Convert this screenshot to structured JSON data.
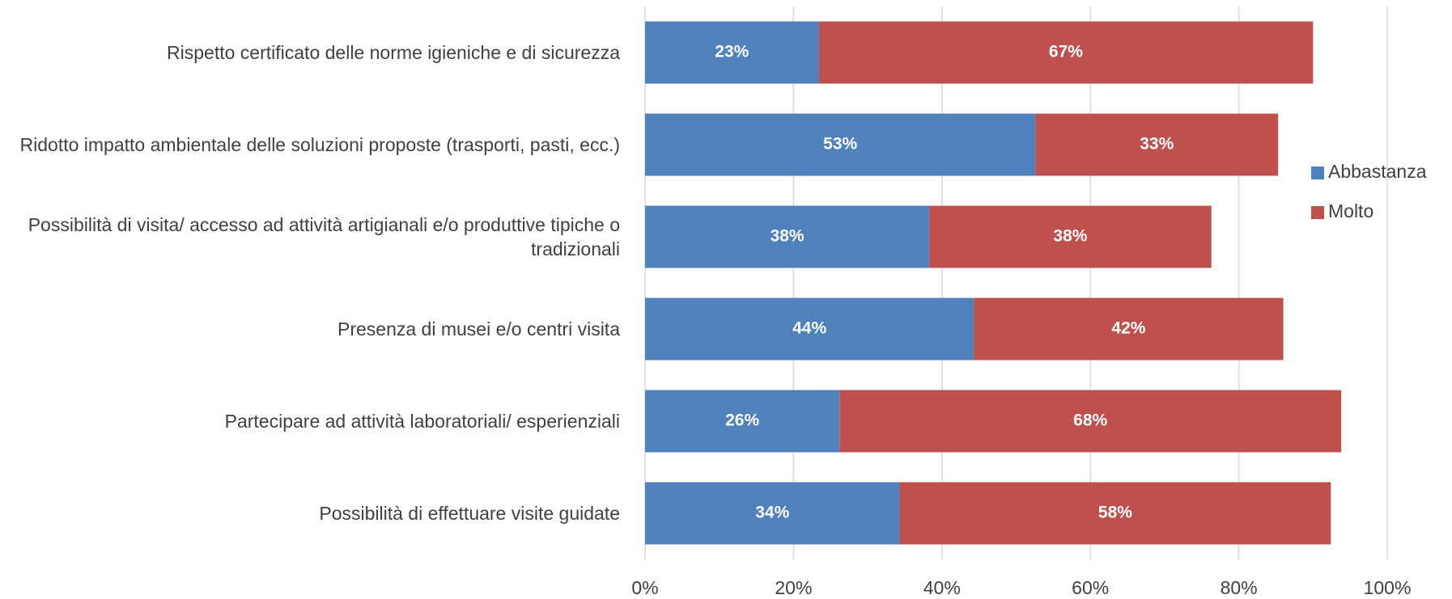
{
  "chart_data": {
    "type": "stacked_barh",
    "categories": [
      "Rispetto certificato delle norme igieniche e di sicurezza",
      "Ridotto impatto ambientale delle soluzioni proposte (trasporti, pasti, ecc.)",
      "Possibilità di visita/ accesso ad attività artigianali e/o produttive tipiche o tradizionali",
      "Presenza di musei e/o centri visita",
      "Partecipare ad attività laboratoriali/ esperienziali",
      "Possibilità di effettuare visite guidate"
    ],
    "series": [
      {
        "name": "Abbastanza",
        "color": "#4f81bd",
        "values": [
          23.4,
          52.6,
          38.3,
          44.3,
          26.2,
          34.3
        ],
        "value_labels": [
          "23%",
          "53%",
          "38%",
          "44%",
          "26%",
          "34%"
        ]
      },
      {
        "name": "Molto",
        "color": "#c0504d",
        "values": [
          66.6,
          32.7,
          38.0,
          41.7,
          67.6,
          58.1
        ],
        "value_labels": [
          "67%",
          "33%",
          "38%",
          "42%",
          "68%",
          "58%"
        ]
      }
    ],
    "xlim": [
      0,
      100
    ],
    "xticks": [
      {
        "value": 0,
        "label": "0%"
      },
      {
        "value": 20,
        "label": "20%"
      },
      {
        "value": 40,
        "label": "40%"
      },
      {
        "value": 60,
        "label": "60%"
      },
      {
        "value": 80,
        "label": "80%"
      },
      {
        "value": 100,
        "label": "100%"
      }
    ],
    "grid": true,
    "legend": "right"
  }
}
